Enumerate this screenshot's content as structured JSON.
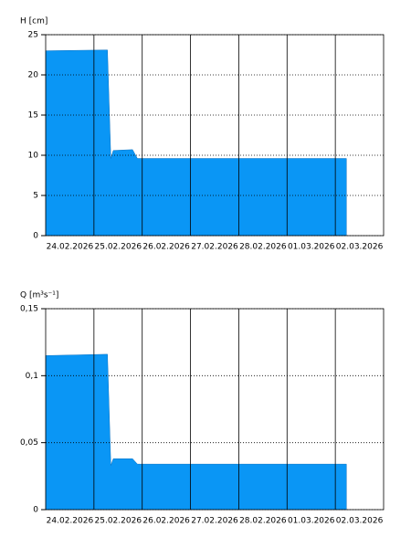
{
  "chart_data": [
    {
      "type": "area",
      "y_label": "H [cm]",
      "color": "#0a96f5",
      "x": [
        0,
        1.28,
        1.35,
        1.4,
        1.8,
        1.9,
        6.23
      ],
      "values": [
        23,
        23.1,
        9.6,
        10.6,
        10.7,
        9.6,
        9.6
      ],
      "xlim": [
        0,
        7
      ],
      "xticks": [
        {
          "value": 0.5,
          "label": "24.02.2026"
        },
        {
          "value": 1.5,
          "label": "25.02.2026"
        },
        {
          "value": 2.5,
          "label": "26.02.2026"
        },
        {
          "value": 3.5,
          "label": "27.02.2026"
        },
        {
          "value": 4.5,
          "label": "28.02.2026"
        },
        {
          "value": 5.5,
          "label": "01.03.2026"
        },
        {
          "value": 6.5,
          "label": "02.03.2026"
        }
      ],
      "xgrid": [
        1,
        2,
        3,
        4,
        5,
        6
      ],
      "ylim": [
        0,
        25
      ],
      "yticks": [
        0,
        5,
        10,
        15,
        20,
        25
      ],
      "grid": true
    },
    {
      "type": "area",
      "y_label": "Q [m³s⁻¹]",
      "color": "#0a96f5",
      "x": [
        0,
        1.28,
        1.35,
        1.4,
        1.8,
        1.9,
        6.23
      ],
      "values": [
        0.115,
        0.116,
        0.033,
        0.038,
        0.038,
        0.034,
        0.034
      ],
      "xlim": [
        0,
        7
      ],
      "xticks": [
        {
          "value": 0.5,
          "label": "24.02.2026"
        },
        {
          "value": 1.5,
          "label": "25.02.2026"
        },
        {
          "value": 2.5,
          "label": "26.02.2026"
        },
        {
          "value": 3.5,
          "label": "27.02.2026"
        },
        {
          "value": 4.5,
          "label": "28.02.2026"
        },
        {
          "value": 5.5,
          "label": "01.03.2026"
        },
        {
          "value": 6.5,
          "label": "02.03.2026"
        }
      ],
      "xgrid": [
        1,
        2,
        3,
        4,
        5,
        6
      ],
      "ylim": [
        0,
        0.15
      ],
      "yticks": [
        0,
        {
          "value": 0.05,
          "label": "0,05"
        },
        {
          "value": 0.1,
          "label": "0,1"
        },
        {
          "value": 0.15,
          "label": "0,15"
        }
      ],
      "grid": true
    }
  ]
}
